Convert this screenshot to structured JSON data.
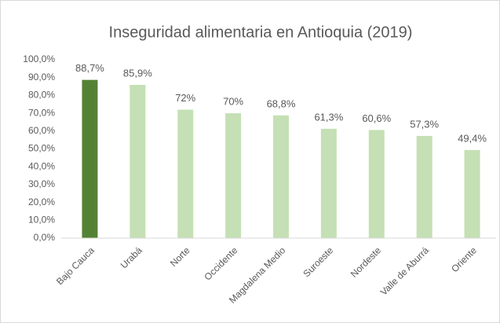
{
  "chart_data": {
    "type": "bar",
    "title": "Inseguridad alimentaria en Antioquia (2019)",
    "categories": [
      "Bajo Cauca",
      "Urabá",
      "Norte",
      "Occidente",
      "Magdalena Medio",
      "Suroeste",
      "Nordeste",
      "Valle de Aburrá",
      "Oriente"
    ],
    "values": [
      88.7,
      85.9,
      72,
      70,
      68.8,
      61.3,
      60.6,
      57.3,
      49.4
    ],
    "value_labels": [
      "88,7%",
      "85,9%",
      "72%",
      "70%",
      "68,8%",
      "61,3%",
      "60,6%",
      "57,3%",
      "49,4%"
    ],
    "colors": [
      "#548235",
      "#c5e0b4",
      "#c5e0b4",
      "#c5e0b4",
      "#c5e0b4",
      "#c5e0b4",
      "#c5e0b4",
      "#c5e0b4",
      "#c5e0b4"
    ],
    "ylim": [
      0,
      100
    ],
    "yticks": [
      {
        "value": 0,
        "label": "0,0%"
      },
      {
        "value": 10,
        "label": "10,0%"
      },
      {
        "value": 20,
        "label": "20,0%"
      },
      {
        "value": 30,
        "label": "30,0%"
      },
      {
        "value": 40,
        "label": "40,0%"
      },
      {
        "value": 50,
        "label": "50,0%"
      },
      {
        "value": 60,
        "label": "60,0%"
      },
      {
        "value": 70,
        "label": "70,0%"
      },
      {
        "value": 80,
        "label": "80,0%"
      },
      {
        "value": 90,
        "label": "90,0%"
      },
      {
        "value": 100,
        "label": "100,0%"
      }
    ],
    "grid": false
  }
}
